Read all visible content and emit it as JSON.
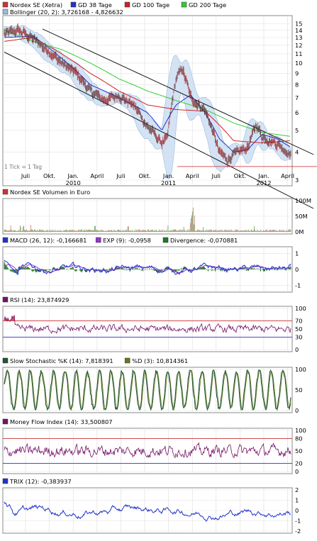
{
  "chart_data": {
    "type": "line",
    "x_ticks": [
      "Juli",
      "Okt.",
      "Jan.",
      "April",
      "Juli",
      "Okt.",
      "Jan.",
      "April",
      "Juli",
      "Okt.",
      "Jan.",
      "April"
    ],
    "year_labels": [
      "2010",
      "2011",
      "2012"
    ],
    "panels": [
      {
        "id": "price",
        "legend": [
          {
            "label": "Nordex SE (Xetra)",
            "color": "#cc3333"
          },
          {
            "label": "GD 38 Tage",
            "color": "#2233cc"
          },
          {
            "label": "GD 100 Tage",
            "color": "#cc2222"
          },
          {
            "label": "GD 200 Tage",
            "color": "#33cc33"
          },
          {
            "label": "Bollinger (20, 2): 3,726168 - 4,826632",
            "color": "#99bbdd"
          }
        ],
        "yscale": "log",
        "yticks": [
          "15",
          "14",
          "13",
          "12",
          "11",
          "10",
          "9",
          "8",
          "7",
          "6",
          "5",
          "4",
          "3"
        ],
        "note": "1 Tick = 1 Tag",
        "series": [
          {
            "name": "Nordex SE (Xetra)",
            "color": "#8b1a1a",
            "x": [
              0,
              0.05,
              0.1,
              0.15,
              0.2,
              0.25,
              0.3,
              0.35,
              0.4,
              0.45,
              0.5,
              0.55,
              0.57,
              0.6,
              0.62,
              0.65,
              0.7,
              0.75,
              0.78,
              0.8,
              0.85,
              0.88,
              0.9,
              0.95,
              1.0
            ],
            "y": [
              13.5,
              14.0,
              12.8,
              11.5,
              10.0,
              9.0,
              7.5,
              6.8,
              7.2,
              6.5,
              5.2,
              4.4,
              4.6,
              8.5,
              9.5,
              7.0,
              6.2,
              4.0,
              3.7,
              3.9,
              4.2,
              5.3,
              4.7,
              4.4,
              3.9
            ]
          },
          {
            "name": "GD 38 Tage",
            "color": "#2233cc",
            "x": [
              0,
              0.1,
              0.2,
              0.3,
              0.4,
              0.5,
              0.55,
              0.6,
              0.65,
              0.7,
              0.75,
              0.8,
              0.85,
              0.9,
              0.95,
              1.0
            ],
            "y": [
              13.0,
              13.2,
              10.5,
              8.0,
              7.0,
              6.0,
              5.0,
              6.5,
              7.2,
              6.0,
              4.6,
              4.0,
              4.1,
              4.8,
              4.6,
              4.2
            ]
          },
          {
            "name": "GD 100 Tage",
            "color": "#cc2222",
            "x": [
              0,
              0.1,
              0.2,
              0.3,
              0.4,
              0.5,
              0.6,
              0.7,
              0.8,
              0.9,
              1.0
            ],
            "y": [
              12.5,
              13.0,
              11.0,
              9.0,
              7.5,
              6.5,
              6.2,
              6.1,
              4.5,
              4.4,
              4.5
            ]
          },
          {
            "name": "GD 200 Tage",
            "color": "#33cc33",
            "x": [
              0,
              0.1,
              0.2,
              0.3,
              0.4,
              0.5,
              0.6,
              0.7,
              0.8,
              0.9,
              1.0
            ],
            "y": [
              14.0,
              12.5,
              11.5,
              10.0,
              8.5,
              7.5,
              6.8,
              6.2,
              5.4,
              4.9,
              4.7
            ]
          }
        ]
      },
      {
        "id": "volume",
        "legend": [
          {
            "label": "Nordex SE Volumen in Euro",
            "color": "#cc3333"
          }
        ],
        "yticks": [
          "100M",
          "50M",
          "0M"
        ],
        "ylim": [
          0,
          100
        ]
      },
      {
        "id": "macd",
        "legend": [
          {
            "label": "MACD (26, 12): -0,166681",
            "color": "#2233cc"
          },
          {
            "label": "EXP (9): -0,0958",
            "color": "#9933cc"
          },
          {
            "label": "Divergence: -0,070881",
            "color": "#227722"
          }
        ],
        "yticks": [
          "1",
          "0",
          "-1"
        ],
        "ylim": [
          -1.3,
          1.3
        ]
      },
      {
        "id": "rsi",
        "legend": [
          {
            "label": "RSI (14): 23,874929",
            "color": "#771166"
          }
        ],
        "yticks": [
          "100",
          "70",
          "50",
          "30",
          "0"
        ],
        "ylim": [
          0,
          100
        ],
        "levels": [
          {
            "value": 70,
            "color": "#cc3333"
          },
          {
            "value": 30,
            "color": "#3333cc"
          }
        ]
      },
      {
        "id": "stoch",
        "legend": [
          {
            "label": "Slow Stochastic %K (14): 7,818391",
            "color": "#225533"
          },
          {
            "label": "%D (3): 10,814361",
            "color": "#667722"
          }
        ],
        "yticks": [
          "100",
          "50",
          "0"
        ],
        "ylim": [
          0,
          100
        ]
      },
      {
        "id": "mfi",
        "legend": [
          {
            "label": "Money Flow Index (14): 33,500807",
            "color": "#771166"
          }
        ],
        "yticks": [
          "100",
          "80",
          "50",
          "20",
          "0"
        ],
        "ylim": [
          0,
          100
        ],
        "levels": [
          {
            "value": 80,
            "color": "#cc3333"
          },
          {
            "value": 20,
            "color": "#3333cc"
          }
        ]
      },
      {
        "id": "trix",
        "legend": [
          {
            "label": "TRIX (12): -0,383937",
            "color": "#2233cc"
          }
        ],
        "yticks": [
          "2",
          "1",
          "0",
          "-1",
          "-2"
        ],
        "ylim": [
          -2,
          2
        ]
      }
    ]
  }
}
